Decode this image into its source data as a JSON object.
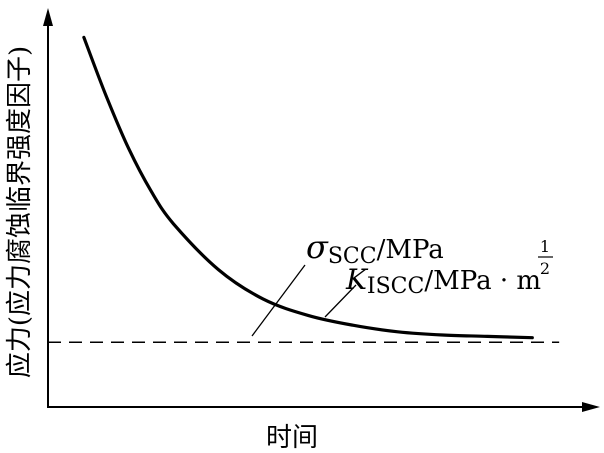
{
  "chart_data": {
    "type": "line",
    "xlabel": "时间",
    "ylabel": "应力(应力腐蚀临界强度因子)",
    "grid": false,
    "x": [
      0,
      0.5,
      1,
      1.5,
      2,
      3,
      4,
      5,
      6,
      7,
      8,
      9,
      10
    ],
    "series": [
      {
        "values": [
          100,
          82,
          66,
          53,
          43,
          29,
          20,
          15,
          12,
          10,
          9,
          8.6,
          8.2
        ]
      }
    ],
    "threshold": 6.8,
    "xlim": [
      -0.8,
      11.6
    ],
    "ylim": [
      -13,
      109
    ],
    "annotations": [
      {
        "symbol": "σ",
        "subscript": "SCC",
        "unit": "/MPa"
      },
      {
        "symbol": "K",
        "subscript": "ISCC",
        "unit": "/MPa · m",
        "exponent_numerator": "1",
        "exponent_denominator": "2"
      }
    ]
  }
}
